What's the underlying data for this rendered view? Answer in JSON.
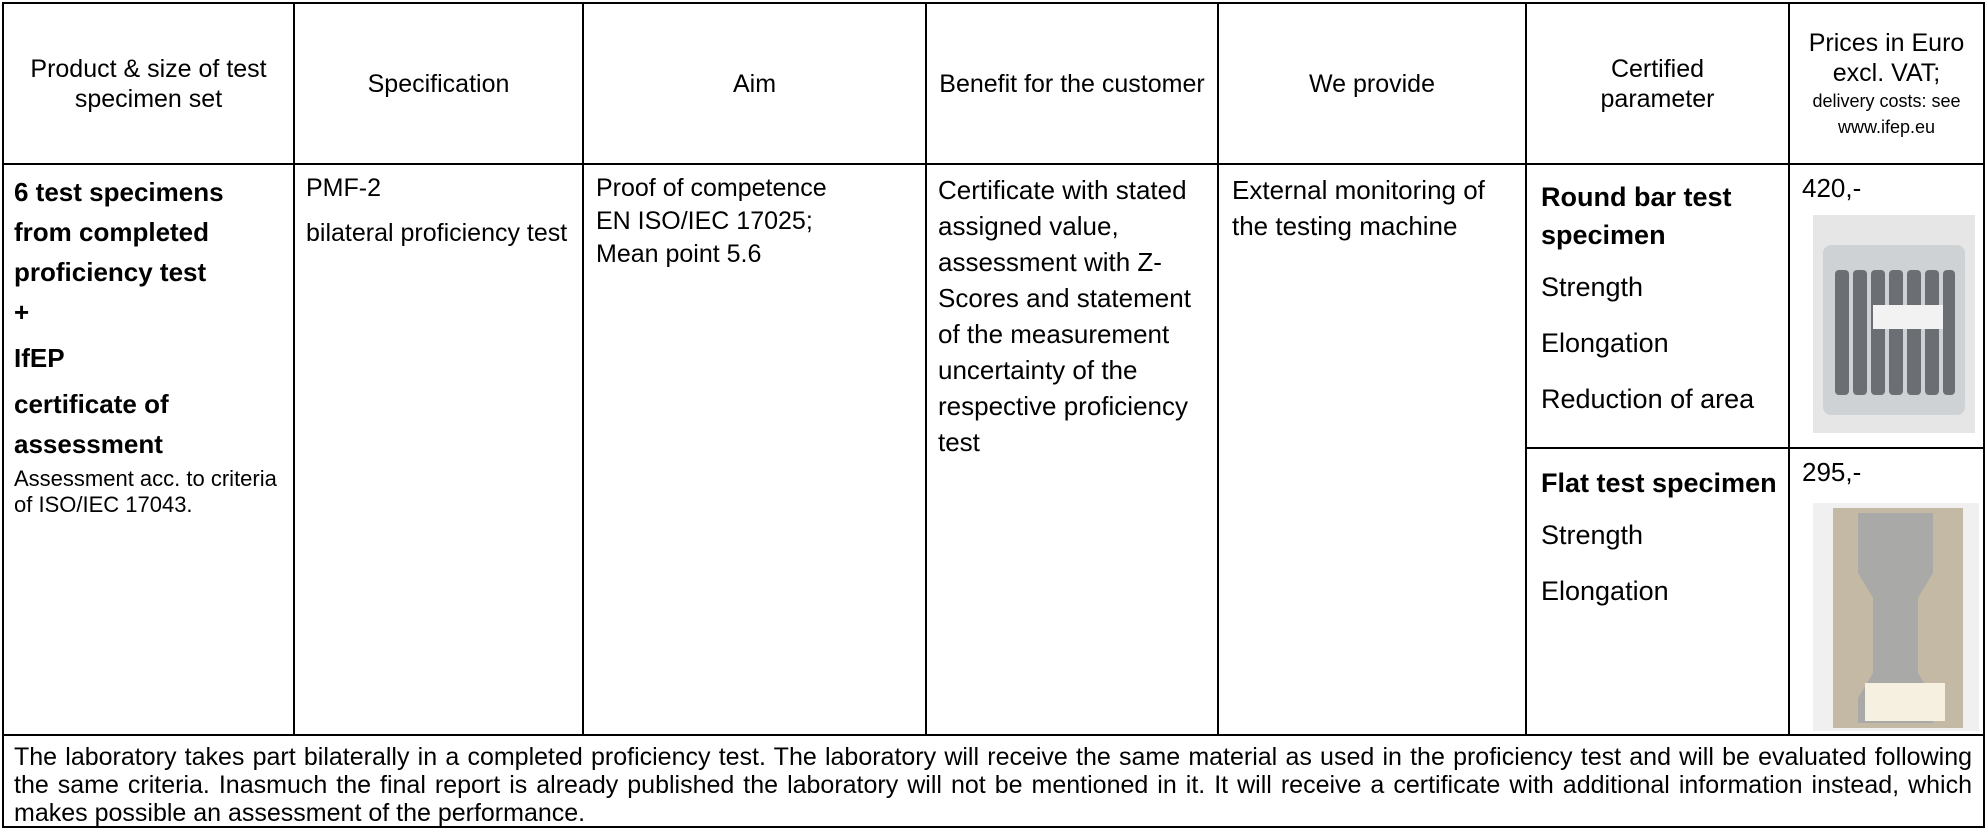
{
  "header": {
    "columns": [
      "Product & size of test specimen set",
      "Specification",
      "Aim",
      "Benefit for the customer",
      "We provide",
      "Certified parameter"
    ],
    "price_title": "Prices in Euro excl. VAT;",
    "price_note": "delivery costs: see www.ifep.eu"
  },
  "product": {
    "lines": [
      "6 test specimens from completed proficiency test",
      "+",
      "IfEP",
      "certificate of assessment"
    ],
    "note": "Assessment acc. to criteria of ISO/IEC 17043."
  },
  "specification": [
    "PMF-2",
    "bilateral proficiency test"
  ],
  "aim": [
    "Proof of competence",
    "EN ISO/IEC 17025;",
    "Mean point 5.6"
  ],
  "benefit": "Certificate with stated assigned value, assessment with Z-Scores and statement of the measurement uncertainty of the respective proficiency test",
  "provide": "External monitoring of the testing machine",
  "items": [
    {
      "name": "Round bar test specimen",
      "parameters": [
        "Strength",
        "Elongation",
        "Reduction of area"
      ],
      "price": "420,-"
    },
    {
      "name": "Flat test specimen",
      "parameters": [
        "Strength",
        "Elongation"
      ],
      "price": "295,-"
    }
  ],
  "footer": "The laboratory takes part bilaterally in a completed proficiency test. The laboratory will receive the same material as used in the proficiency test and will be evaluated following the same criteria. Inasmuch the final report is already published the laboratory will not be mentioned in it. It will receive a certificate with additional information instead, which makes possible an assessment of the performance."
}
